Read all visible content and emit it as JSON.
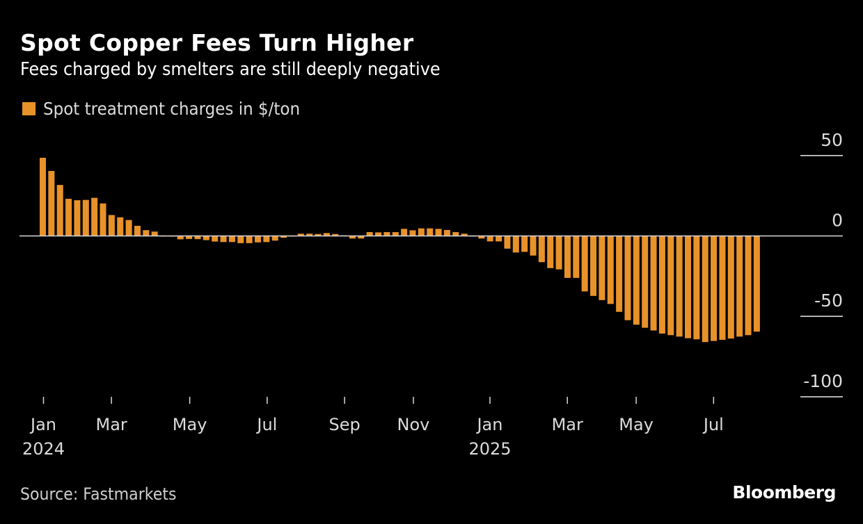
{
  "header": {
    "title": "Spot Copper Fees Turn Higher",
    "subtitle": "Fees charged by smelters are still deeply negative"
  },
  "legend": {
    "label": "Spot treatment charges in $/ton",
    "color": "#E8922A"
  },
  "footer": {
    "source": "Source: Fastmarkets",
    "brand": "Bloomberg"
  },
  "colors": {
    "background": "#000000",
    "bar": "#E8922A",
    "axis": "#d9d9d9",
    "text": "#ffffff"
  },
  "chart_data": {
    "type": "bar",
    "title": "Spot Copper Fees Turn Higher",
    "subtitle": "Fees charged by smelters are still deeply negative",
    "xlabel": "",
    "ylabel": "",
    "frequency": "weekly",
    "ylim": [
      -100,
      50
    ],
    "yticks": [
      50,
      0,
      -50,
      -100
    ],
    "ytick_labels": [
      "50",
      "0",
      "-50",
      "-100"
    ],
    "y_axis_position": "right",
    "grid": false,
    "legend_position": "top-left",
    "xticks": [
      {
        "label": "Jan",
        "year": "2024",
        "bar_index": 0.4
      },
      {
        "label": "Mar",
        "year": "",
        "bar_index": 8.3
      },
      {
        "label": "May",
        "year": "",
        "bar_index": 17.4
      },
      {
        "label": "Jul",
        "year": "",
        "bar_index": 26.4
      },
      {
        "label": "Sep",
        "year": "",
        "bar_index": 35.4
      },
      {
        "label": "Nov",
        "year": "",
        "bar_index": 43.4
      },
      {
        "label": "Jan",
        "year": "2025",
        "bar_index": 52.3
      },
      {
        "label": "Mar",
        "year": "",
        "bar_index": 61.3
      },
      {
        "label": "May",
        "year": "",
        "bar_index": 69.3
      },
      {
        "label": "Jul",
        "year": "",
        "bar_index": 78.3
      }
    ],
    "series": [
      {
        "name": "Spot treatment charges in $/ton",
        "color": "#E8922A",
        "values": [
          48.6,
          40.4,
          31.7,
          23.1,
          22.2,
          22.4,
          23.7,
          20.2,
          13.0,
          11.6,
          9.9,
          6.3,
          3.6,
          2.7,
          -0.3,
          -0.4,
          -2.1,
          -1.9,
          -2.0,
          -2.6,
          -3.5,
          -3.8,
          -3.8,
          -4.5,
          -4.5,
          -4.0,
          -3.8,
          -2.9,
          -1.1,
          -0.3,
          1.4,
          1.4,
          1.2,
          1.8,
          1.2,
          0.4,
          -1.6,
          -1.6,
          2.4,
          2.2,
          2.4,
          2.4,
          4.4,
          3.5,
          4.7,
          4.7,
          4.4,
          3.7,
          2.4,
          1.4,
          -0.4,
          -1.6,
          -3.4,
          -3.4,
          -7.9,
          -10.3,
          -9.9,
          -12.2,
          -16.3,
          -20.0,
          -20.8,
          -26.1,
          -26.1,
          -34.5,
          -37.3,
          -39.9,
          -42.3,
          -47.2,
          -52.4,
          -55.2,
          -57.1,
          -58.8,
          -60.7,
          -61.7,
          -62.6,
          -63.6,
          -64.3,
          -66.0,
          -65.3,
          -64.6,
          -63.8,
          -62.6,
          -61.7,
          -59.5
        ]
      }
    ]
  }
}
